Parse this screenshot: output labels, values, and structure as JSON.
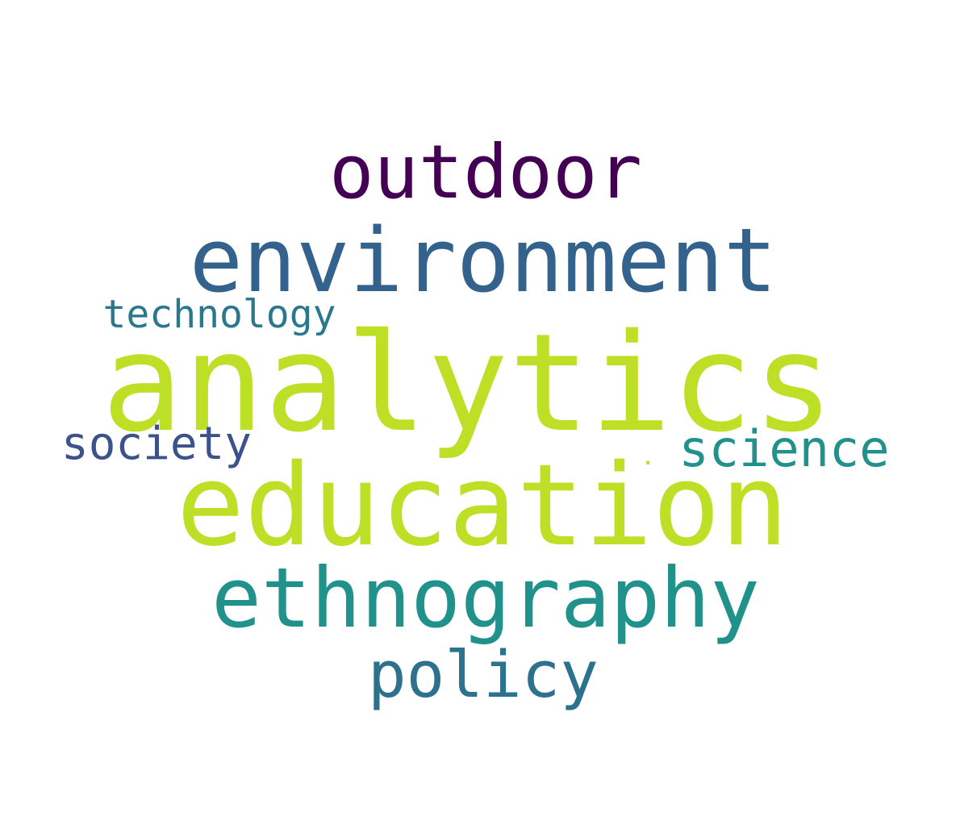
{
  "words": [
    {
      "key": "analytics",
      "text": "analytics",
      "color": "#bddf26"
    },
    {
      "key": "education",
      "text": "education",
      "color": "#bddf26"
    },
    {
      "key": "environment",
      "text": "environment",
      "color": "#33638d"
    },
    {
      "key": "outdoor",
      "text": "outdoor",
      "color": "#440154"
    },
    {
      "key": "ethnography",
      "text": "ethnography",
      "color": "#21918c"
    },
    {
      "key": "policy",
      "text": "policy",
      "color": "#2c728e"
    },
    {
      "key": "science",
      "text": "science",
      "color": "#21918c"
    },
    {
      "key": "society",
      "text": "society",
      "color": "#3b528b"
    },
    {
      "key": "technology",
      "text": "technology",
      "color": "#2a788e"
    },
    {
      "key": "dot",
      "text": ".",
      "color": "#bddf26"
    }
  ]
}
